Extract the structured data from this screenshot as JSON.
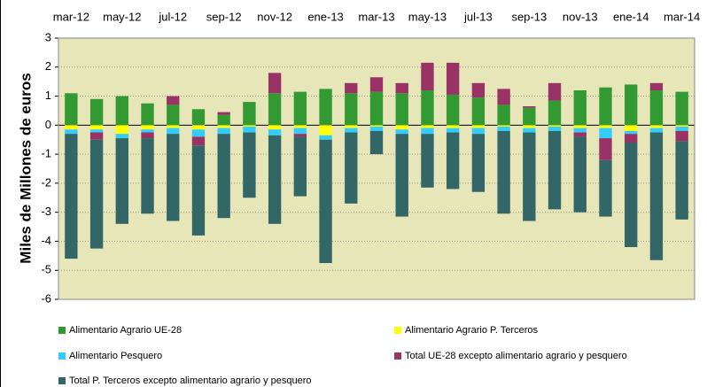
{
  "chart_data": {
    "type": "bar",
    "stacked": true,
    "y_label": "Miles de Millones de euros",
    "categories": [
      "mar-12",
      null,
      "may-12",
      null,
      "jul-12",
      null,
      "sep-12",
      null,
      "nov-12",
      null,
      "ene-13",
      null,
      "mar-13",
      null,
      "may-13",
      null,
      "jul-13",
      null,
      "sep-13",
      null,
      "nov-13",
      null,
      "ene-14",
      null,
      "mar-14"
    ],
    "series": [
      {
        "name": "Alimentario Agrario UE-28",
        "color": "#339933",
        "values": [
          1.1,
          0.9,
          1.0,
          0.75,
          0.7,
          0.55,
          0.35,
          0.8,
          1.1,
          1.15,
          1.25,
          1.1,
          1.15,
          1.1,
          1.2,
          1.05,
          0.95,
          0.7,
          0.6,
          0.85,
          1.2,
          1.3,
          1.4,
          1.2,
          1.15
        ]
      },
      {
        "name": "Alimentario Agrario P. Terceros",
        "color": "#ffff00",
        "values": [
          -0.15,
          -0.15,
          -0.3,
          -0.15,
          -0.1,
          -0.15,
          -0.1,
          -0.05,
          -0.15,
          -0.1,
          -0.35,
          -0.1,
          -0.05,
          -0.15,
          -0.1,
          -0.1,
          -0.1,
          -0.05,
          -0.1,
          -0.05,
          -0.1,
          -0.1,
          -0.2,
          -0.1,
          -0.05
        ]
      },
      {
        "name": "Alimentario Pesquero",
        "color": "#33ccff",
        "values": [
          -0.15,
          -0.1,
          -0.15,
          -0.1,
          -0.2,
          -0.25,
          -0.2,
          -0.2,
          -0.2,
          -0.2,
          -0.15,
          -0.15,
          -0.15,
          -0.15,
          -0.2,
          -0.15,
          -0.2,
          -0.15,
          -0.15,
          -0.15,
          -0.15,
          -0.35,
          -0.1,
          -0.15,
          -0.15
        ]
      },
      {
        "name": "Total UE-28 excepto alimentario agrario y pesquero",
        "color": "#993366",
        "values": [
          0,
          -0.25,
          0,
          -0.2,
          0.3,
          -0.3,
          0.1,
          0,
          0.7,
          -0.1,
          0,
          0.35,
          0.5,
          0.35,
          0.95,
          1.1,
          0.5,
          0.55,
          0.05,
          0.6,
          -0.15,
          -0.75,
          -0.3,
          0.25,
          -0.35
        ]
      },
      {
        "name": "Total P. Terceros excepto alimentario agrario y pesquero",
        "color": "#336666",
        "values": [
          -4.3,
          -3.75,
          -2.95,
          -2.6,
          -3.0,
          -3.1,
          -2.9,
          -2.25,
          -3.05,
          -2.05,
          -4.25,
          -2.45,
          -0.8,
          -2.85,
          -1.85,
          -1.95,
          -2.0,
          -2.85,
          -3.05,
          -2.7,
          -2.6,
          -1.95,
          -3.6,
          -4.4,
          -2.7
        ]
      }
    ],
    "ylim": [
      -6,
      3
    ],
    "yticks": [
      -6,
      -5,
      -4,
      -3,
      -2,
      -1,
      0,
      1,
      2,
      3
    ],
    "grid": true,
    "plot_background": "#e6e6b8",
    "legend_position": "bottom"
  }
}
